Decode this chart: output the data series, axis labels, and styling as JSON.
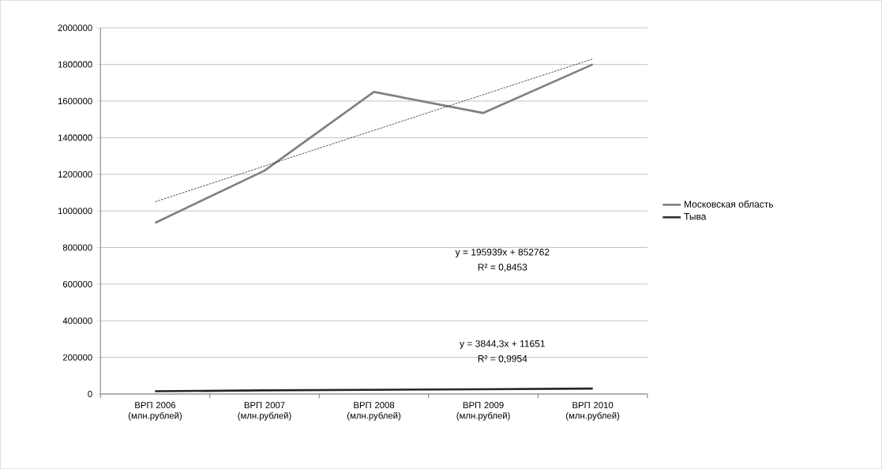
{
  "chart_data": {
    "type": "line",
    "categories": [
      "ВРП 2006 (млн.рублей)",
      "ВРП 2007 (млн.рублей)",
      "ВРП 2008 (млн.рублей)",
      "ВРП 2009 (млн.рублей)",
      "ВРП 2010 (млн.рублей)"
    ],
    "series": [
      {
        "name": "Московская область",
        "color": "#808080",
        "values": [
          935000,
          1220000,
          1650000,
          1535000,
          1800000
        ],
        "line_style": "solid"
      },
      {
        "name": "Тыва",
        "color": "#303030",
        "values": [
          15000,
          20000,
          23000,
          26000,
          30000
        ],
        "line_style": "solid"
      },
      {
        "color": "#000000",
        "values": [
          1050000,
          1245000,
          1440000,
          1635000,
          1830000
        ],
        "line_style": "dashed"
      },
      {
        "color": "#000000",
        "values": [
          15000,
          19000,
          23000,
          27000,
          31000
        ],
        "line_style": "dashed"
      }
    ],
    "ylim": [
      0,
      2000000
    ],
    "yticks": [
      0,
      200000,
      400000,
      600000,
      800000,
      1000000,
      1200000,
      1400000,
      1600000,
      1800000,
      2000000
    ],
    "grid": "y",
    "legend": "right",
    "marker": "none",
    "annotations": [
      "y = 195939x + 852762",
      "R² = 0,8453",
      "y = 3844,3x + 11651",
      "R² = 0,9954"
    ]
  }
}
